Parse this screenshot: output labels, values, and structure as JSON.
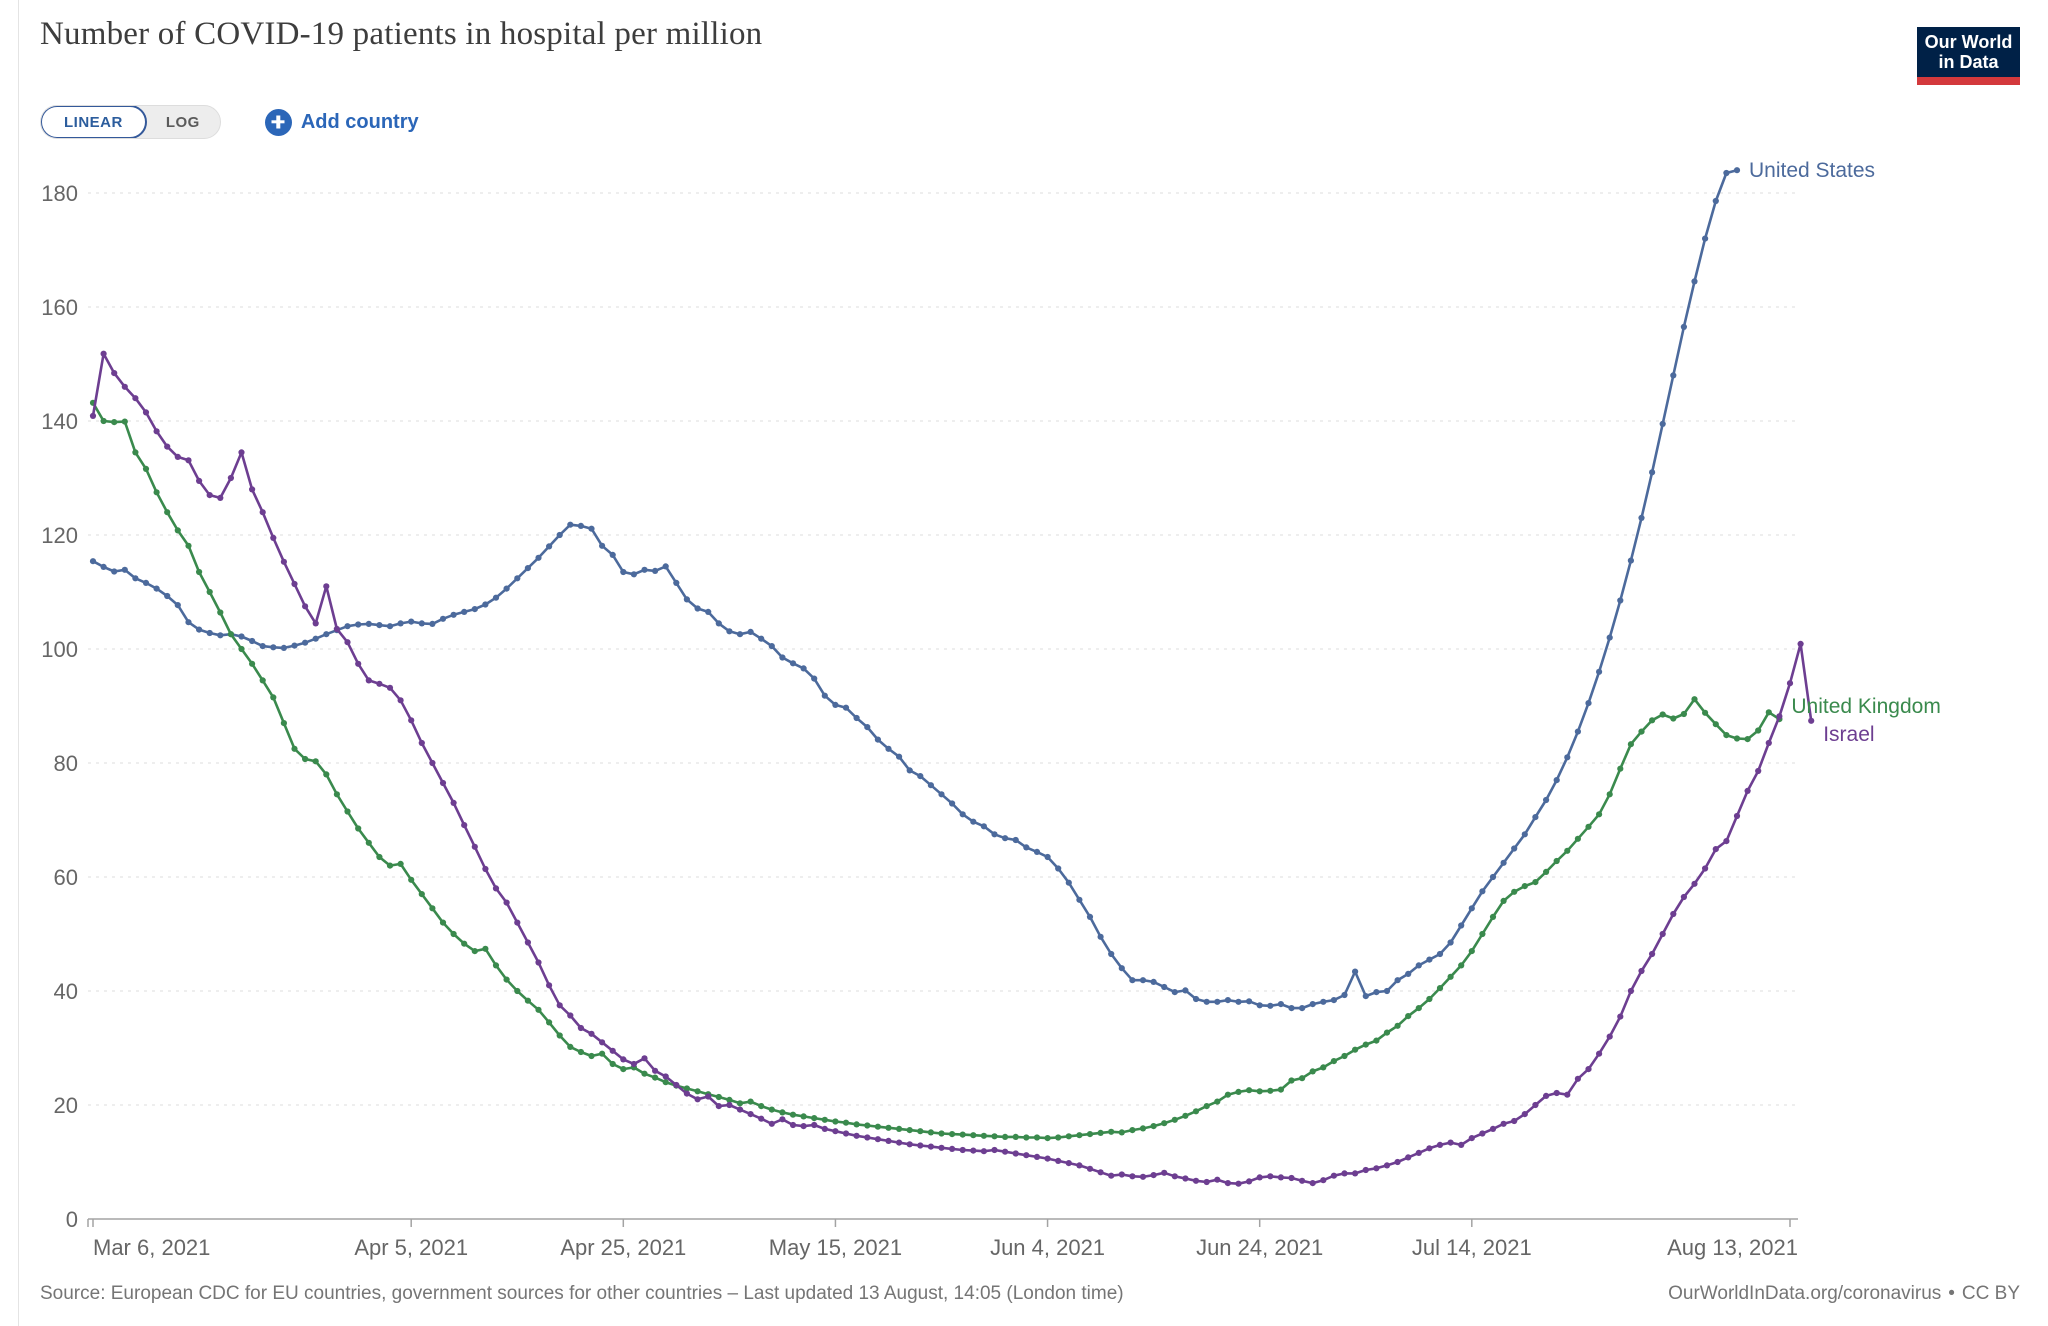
{
  "header": {
    "title": "Number of COVID-19 patients in hospital per million",
    "logo_line1": "Our World",
    "logo_line2": "in Data"
  },
  "controls": {
    "linear_label": "LINEAR",
    "log_label": "LOG",
    "active_scale": "LINEAR",
    "add_country_label": "Add country"
  },
  "footer": {
    "source_text": "Source: European CDC for EU countries, government sources for other countries – Last updated 13 August, 14:05 (London time)",
    "link_text": "OurWorldInData.org/coronavirus",
    "separator": "•",
    "license_text": "CC BY"
  },
  "chart_data": {
    "type": "line",
    "title": "Number of COVID-19 patients in hospital per million",
    "x_axis": {
      "start_date": "Mar 6, 2021",
      "end_date": "Aug 13, 2021",
      "tick_labels": [
        "Mar 6, 2021",
        "Apr 5, 2021",
        "Apr 25, 2021",
        "May 15, 2021",
        "Jun 4, 2021",
        "Jun 24, 2021",
        "Jul 14, 2021",
        "Aug 13, 2021"
      ],
      "tick_days": [
        0,
        30,
        50,
        70,
        90,
        110,
        130,
        160
      ],
      "total_days": 162
    },
    "y_axis": {
      "min": 0,
      "max": 180,
      "step": 20,
      "ticks": [
        0,
        20,
        40,
        60,
        80,
        100,
        120,
        140,
        160,
        180
      ]
    },
    "grid": true,
    "legend_position": "end-of-line",
    "series": [
      {
        "name": "United States",
        "color": "#4C6A9C",
        "start_day": 0,
        "values": [
          115.4,
          114.4,
          113.6,
          113.9,
          112.4,
          111.6,
          110.6,
          109.3,
          107.7,
          104.7,
          103.4,
          102.8,
          102.4,
          102.6,
          102.2,
          101.4,
          100.5,
          100.3,
          100.2,
          100.6,
          101.1,
          101.8,
          102.6,
          103.3,
          104.0,
          104.3,
          104.4,
          104.2,
          104.0,
          104.5,
          104.8,
          104.5,
          104.4,
          105.3,
          106.0,
          106.5,
          107.0,
          107.8,
          109.0,
          110.6,
          112.4,
          114.2,
          116.0,
          118.0,
          120.0,
          121.8,
          121.6,
          121.1,
          118.1,
          116.5,
          113.5,
          113.1,
          113.9,
          113.7,
          114.5,
          111.6,
          108.7,
          107.1,
          106.5,
          104.5,
          103.1,
          102.6,
          103.0,
          101.8,
          100.5,
          98.5,
          97.5,
          96.6,
          94.8,
          91.8,
          90.2,
          89.7,
          87.9,
          86.3,
          84.1,
          82.5,
          81.1,
          78.7,
          77.7,
          76.1,
          74.5,
          72.9,
          71.0,
          69.7,
          68.9,
          67.5,
          66.8,
          66.5,
          65.2,
          64.4,
          63.5,
          61.5,
          59.0,
          56.0,
          53.0,
          49.5,
          46.5,
          44.0,
          41.9,
          41.9,
          41.6,
          40.7,
          39.8,
          40.1,
          38.6,
          38.1,
          38.1,
          38.4,
          38.1,
          38.2,
          37.5,
          37.4,
          37.7,
          37.0,
          37.0,
          37.7,
          38.1,
          38.4,
          39.3,
          43.4,
          39.1,
          39.8,
          40.0,
          41.9,
          43.0,
          44.5,
          45.5,
          46.5,
          48.5,
          51.5,
          54.5,
          57.5,
          60.0,
          62.5,
          65.0,
          67.5,
          70.5,
          73.5,
          77.0,
          81.0,
          85.5,
          90.5,
          96.0,
          102.0,
          108.5,
          115.5,
          123.0,
          131.0,
          139.5,
          148.0,
          156.5,
          164.5,
          172.0,
          178.6,
          183.5,
          184.0
        ]
      },
      {
        "name": "United Kingdom",
        "color": "#3A8A4D",
        "start_day": 0,
        "values": [
          143.2,
          140.0,
          139.8,
          139.9,
          134.5,
          131.6,
          127.5,
          124.0,
          120.8,
          118.1,
          113.5,
          110.0,
          106.4,
          102.6,
          100.0,
          97.4,
          94.5,
          91.5,
          87.0,
          82.5,
          80.7,
          80.3,
          78.0,
          74.5,
          71.5,
          68.5,
          66.0,
          63.5,
          62.0,
          62.3,
          59.5,
          57.0,
          54.5,
          52.0,
          50.0,
          48.3,
          47.0,
          47.4,
          44.5,
          42.0,
          40.0,
          38.3,
          36.7,
          34.5,
          32.2,
          30.2,
          29.3,
          28.6,
          29.0,
          27.2,
          26.3,
          26.6,
          25.5,
          24.8,
          24.0,
          23.4,
          22.9,
          22.4,
          21.9,
          21.4,
          20.9,
          20.3,
          20.6,
          19.8,
          19.2,
          18.7,
          18.3,
          18.0,
          17.7,
          17.4,
          17.1,
          16.9,
          16.6,
          16.4,
          16.2,
          16.0,
          15.8,
          15.6,
          15.4,
          15.2,
          15.0,
          14.9,
          14.8,
          14.7,
          14.6,
          14.5,
          14.4,
          14.4,
          14.3,
          14.3,
          14.2,
          14.3,
          14.5,
          14.7,
          14.9,
          15.1,
          15.3,
          15.2,
          15.6,
          15.9,
          16.3,
          16.8,
          17.4,
          18.1,
          18.9,
          19.8,
          20.6,
          21.8,
          22.3,
          22.6,
          22.4,
          22.5,
          22.7,
          24.3,
          24.7,
          25.9,
          26.6,
          27.7,
          28.6,
          29.7,
          30.6,
          31.3,
          32.7,
          33.9,
          35.6,
          37.0,
          38.6,
          40.5,
          42.5,
          44.5,
          47.0,
          50.0,
          53.0,
          55.8,
          57.4,
          58.4,
          59.1,
          60.9,
          62.8,
          64.6,
          66.7,
          68.8,
          71.0,
          74.5,
          79.0,
          83.3,
          85.5,
          87.5,
          88.5,
          87.8,
          88.6,
          91.2,
          88.8,
          86.8,
          84.9,
          84.3,
          84.2,
          85.7,
          88.9,
          87.7
        ]
      },
      {
        "name": "Israel",
        "color": "#6D3E91",
        "start_day": 0,
        "values": [
          140.9,
          151.8,
          148.4,
          146.0,
          144.0,
          141.5,
          138.2,
          135.5,
          133.7,
          133.1,
          129.5,
          127.0,
          126.5,
          130.0,
          134.5,
          128.0,
          124.0,
          119.5,
          115.3,
          111.4,
          107.5,
          104.5,
          111.0,
          103.5,
          101.2,
          97.4,
          94.5,
          93.9,
          93.2,
          91.0,
          87.5,
          83.5,
          80.0,
          76.5,
          73.0,
          69.1,
          65.3,
          61.4,
          58.0,
          55.5,
          52.0,
          48.5,
          45.0,
          41.0,
          37.5,
          35.7,
          33.5,
          32.5,
          31.0,
          29.5,
          28.0,
          27.2,
          28.2,
          26.0,
          25.0,
          23.5,
          22.0,
          21.0,
          21.5,
          19.8,
          20.0,
          19.2,
          18.4,
          17.6,
          16.7,
          17.5,
          16.5,
          16.3,
          16.5,
          15.8,
          15.4,
          15.0,
          14.6,
          14.3,
          14.0,
          13.7,
          13.4,
          13.1,
          12.9,
          12.7,
          12.5,
          12.3,
          12.1,
          12.0,
          11.9,
          12.1,
          11.8,
          11.5,
          11.2,
          10.9,
          10.6,
          10.2,
          9.8,
          9.4,
          8.8,
          8.2,
          7.6,
          7.8,
          7.5,
          7.4,
          7.7,
          8.1,
          7.5,
          7.1,
          6.7,
          6.5,
          6.9,
          6.3,
          6.2,
          6.6,
          7.3,
          7.5,
          7.3,
          7.2,
          6.7,
          6.3,
          6.8,
          7.6,
          8.0,
          8.0,
          8.6,
          8.9,
          9.4,
          10.0,
          10.8,
          11.6,
          12.4,
          13.0,
          13.4,
          13.0,
          14.2,
          15.0,
          15.8,
          16.7,
          17.2,
          18.4,
          20.0,
          21.6,
          22.1,
          21.8,
          24.6,
          26.3,
          29.0,
          32.0,
          35.5,
          40.0,
          43.5,
          46.5,
          50.0,
          53.5,
          56.5,
          58.8,
          61.5,
          64.9,
          66.3,
          70.7,
          75.1,
          78.6,
          83.5,
          88.2,
          94.0,
          100.9,
          87.4
        ]
      }
    ]
  }
}
